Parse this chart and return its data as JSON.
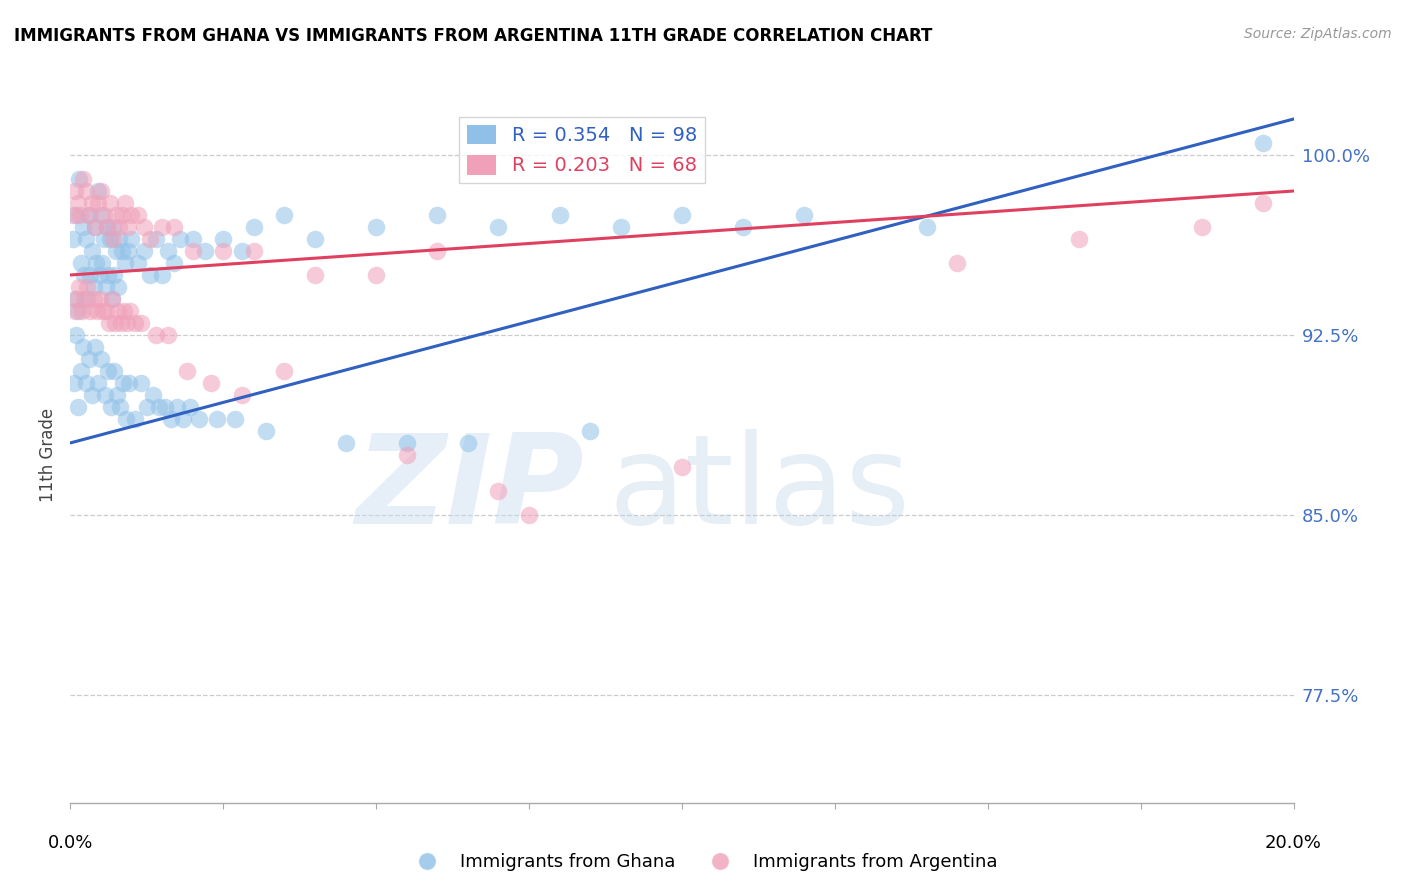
{
  "title": "IMMIGRANTS FROM GHANA VS IMMIGRANTS FROM ARGENTINA 11TH GRADE CORRELATION CHART",
  "source": "Source: ZipAtlas.com",
  "ylabel": "11th Grade",
  "yticks": [
    77.5,
    85.0,
    92.5,
    100.0
  ],
  "ytick_labels": [
    "77.5%",
    "85.0%",
    "92.5%",
    "100.0%"
  ],
  "y_min": 73.0,
  "y_max": 102.0,
  "x_min": 0.0,
  "x_max": 20.0,
  "ghana_color": "#90c0e8",
  "argentina_color": "#f0a0b8",
  "ghana_line_color": "#3060c0",
  "argentina_line_color": "#e04060",
  "ghana_R": 0.354,
  "ghana_N": 98,
  "argentina_R": 0.203,
  "argentina_N": 68,
  "ghana_line_y0": 88.0,
  "ghana_line_y1": 101.5,
  "argentina_line_y0": 95.0,
  "argentina_line_y1": 98.5,
  "ghana_scatter_x": [
    0.05,
    0.08,
    0.1,
    0.12,
    0.15,
    0.18,
    0.2,
    0.22,
    0.25,
    0.28,
    0.3,
    0.32,
    0.35,
    0.38,
    0.4,
    0.42,
    0.45,
    0.48,
    0.5,
    0.52,
    0.55,
    0.58,
    0.6,
    0.62,
    0.65,
    0.68,
    0.7,
    0.72,
    0.75,
    0.78,
    0.8,
    0.85,
    0.9,
    0.95,
    1.0,
    1.1,
    1.2,
    1.3,
    1.4,
    1.5,
    1.6,
    1.7,
    1.8,
    2.0,
    2.2,
    2.5,
    2.8,
    3.0,
    3.5,
    4.0,
    5.0,
    6.0,
    7.0,
    8.0,
    9.0,
    10.0,
    11.0,
    12.0,
    14.0,
    19.5,
    0.06,
    0.09,
    0.13,
    0.17,
    0.21,
    0.26,
    0.31,
    0.36,
    0.41,
    0.46,
    0.51,
    0.56,
    0.61,
    0.66,
    0.71,
    0.76,
    0.81,
    0.86,
    0.91,
    0.96,
    1.05,
    1.15,
    1.25,
    1.35,
    1.45,
    1.55,
    1.65,
    1.75,
    1.85,
    1.95,
    2.1,
    2.4,
    2.7,
    3.2,
    4.5,
    5.5,
    6.5,
    8.5
  ],
  "ghana_scatter_y": [
    96.5,
    94.0,
    97.5,
    93.5,
    99.0,
    95.5,
    97.0,
    95.0,
    96.5,
    94.0,
    97.5,
    95.0,
    96.0,
    94.5,
    97.0,
    95.5,
    98.5,
    95.0,
    97.5,
    95.5,
    96.5,
    94.5,
    97.0,
    95.0,
    96.5,
    94.0,
    97.0,
    95.0,
    96.0,
    94.5,
    96.5,
    96.0,
    95.5,
    96.0,
    96.5,
    95.5,
    96.0,
    95.0,
    96.5,
    95.0,
    96.0,
    95.5,
    96.5,
    96.5,
    96.0,
    96.5,
    96.0,
    97.0,
    97.5,
    96.5,
    97.0,
    97.5,
    97.0,
    97.5,
    97.0,
    97.5,
    97.0,
    97.5,
    97.0,
    100.5,
    90.5,
    92.5,
    89.5,
    91.0,
    92.0,
    90.5,
    91.5,
    90.0,
    92.0,
    90.5,
    91.5,
    90.0,
    91.0,
    89.5,
    91.0,
    90.0,
    89.5,
    90.5,
    89.0,
    90.5,
    89.0,
    90.5,
    89.5,
    90.0,
    89.5,
    89.5,
    89.0,
    89.5,
    89.0,
    89.5,
    89.0,
    89.0,
    89.0,
    88.5,
    88.0,
    88.0,
    88.0,
    88.5
  ],
  "argentina_scatter_x": [
    0.05,
    0.08,
    0.12,
    0.16,
    0.2,
    0.25,
    0.3,
    0.35,
    0.4,
    0.45,
    0.5,
    0.55,
    0.6,
    0.65,
    0.7,
    0.75,
    0.8,
    0.85,
    0.9,
    0.95,
    1.0,
    1.1,
    1.2,
    1.3,
    1.5,
    1.7,
    2.0,
    2.5,
    3.0,
    4.0,
    5.0,
    6.0,
    0.07,
    0.11,
    0.15,
    0.19,
    0.23,
    0.28,
    0.33,
    0.38,
    0.43,
    0.48,
    0.53,
    0.58,
    0.63,
    0.68,
    0.73,
    0.78,
    0.83,
    0.88,
    0.93,
    0.98,
    1.05,
    1.15,
    1.4,
    1.6,
    1.9,
    2.3,
    2.8,
    3.5,
    5.5,
    7.0,
    10.0,
    14.5,
    16.5,
    18.5,
    19.5,
    7.5
  ],
  "argentina_scatter_y": [
    97.5,
    98.5,
    98.0,
    97.5,
    99.0,
    98.5,
    97.5,
    98.0,
    97.0,
    98.0,
    98.5,
    97.5,
    97.0,
    98.0,
    96.5,
    97.5,
    97.0,
    97.5,
    98.0,
    97.0,
    97.5,
    97.5,
    97.0,
    96.5,
    97.0,
    97.0,
    96.0,
    96.0,
    96.0,
    95.0,
    95.0,
    96.0,
    93.5,
    94.0,
    94.5,
    93.5,
    94.0,
    94.5,
    93.5,
    94.0,
    93.5,
    94.0,
    93.5,
    93.5,
    93.0,
    94.0,
    93.0,
    93.5,
    93.0,
    93.5,
    93.0,
    93.5,
    93.0,
    93.0,
    92.5,
    92.5,
    91.0,
    90.5,
    90.0,
    91.0,
    87.5,
    86.0,
    87.0,
    95.5,
    96.5,
    97.0,
    98.0,
    85.0
  ]
}
